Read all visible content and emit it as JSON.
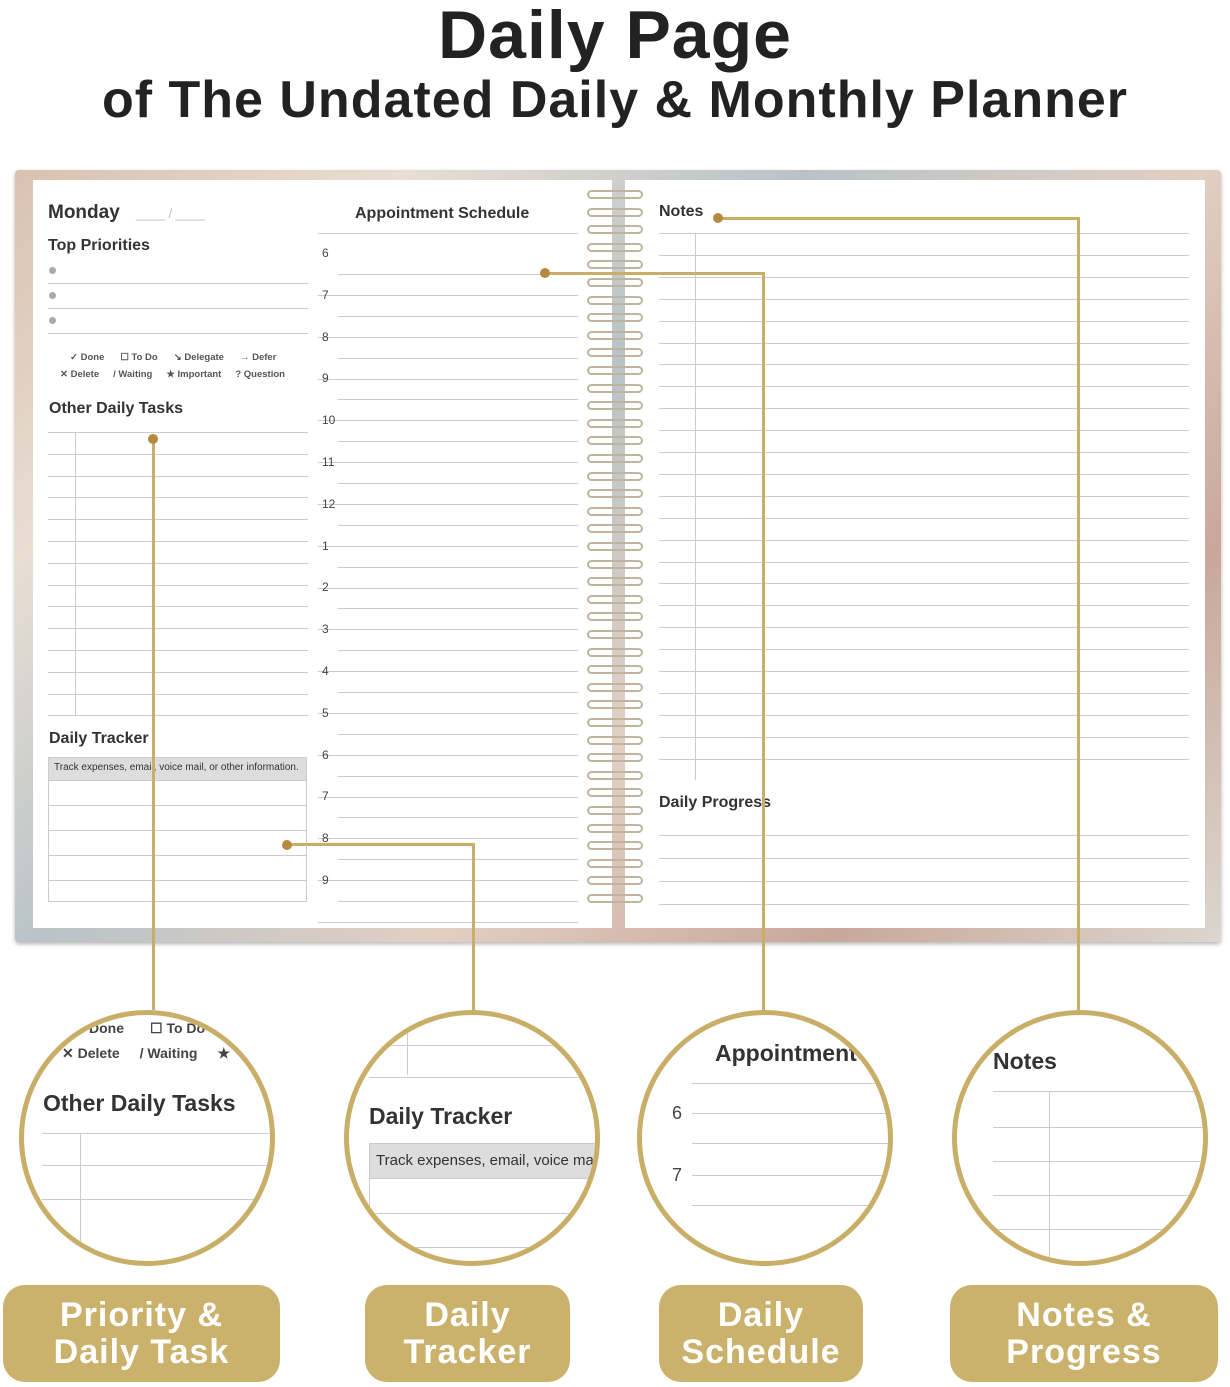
{
  "header": {
    "title": "Daily Page",
    "subtitle": "of The Undated Daily & Monthly Planner"
  },
  "left_page": {
    "day": "Monday",
    "date_blank": "____ / ____",
    "top_priorities": "Top Priorities",
    "legend": [
      [
        "✓ Done",
        "☐ To Do",
        "↘ Delegate",
        "→ Defer"
      ],
      [
        "✕ Delete",
        "/ Waiting",
        "★ Important",
        "? Question"
      ]
    ],
    "other_tasks": "Other Daily Tasks",
    "daily_tracker": "Daily Tracker",
    "tracker_hint": "Track expenses, email, voice mail, or other information.",
    "appointment": "Appointment Schedule",
    "hours": [
      "6",
      "7",
      "8",
      "9",
      "10",
      "11",
      "12",
      "1",
      "2",
      "3",
      "4",
      "5",
      "6",
      "7",
      "8",
      "9"
    ]
  },
  "right_page": {
    "notes": "Notes",
    "daily_progress": "Daily Progress"
  },
  "zoom_circles": {
    "c1": {
      "legend1": [
        "Done",
        "☐ To Do"
      ],
      "legend2": [
        "✕ Delete",
        "/ Waiting",
        "★"
      ],
      "heading": "Other Daily Tasks"
    },
    "c2": {
      "heading": "Daily Tracker",
      "hint": "Track expenses, email, voice mail"
    },
    "c3": {
      "heading": "Appointment",
      "hours": [
        "6",
        "7"
      ]
    },
    "c4": {
      "heading": "Notes"
    }
  },
  "feature_labels": [
    "Priority &\nDaily Task",
    "Daily\nTracker",
    "Daily\nSchedule",
    "Notes &\nProgress"
  ],
  "colors": {
    "accent_gold": "#c8ae67",
    "dot": "#b58a3e"
  }
}
